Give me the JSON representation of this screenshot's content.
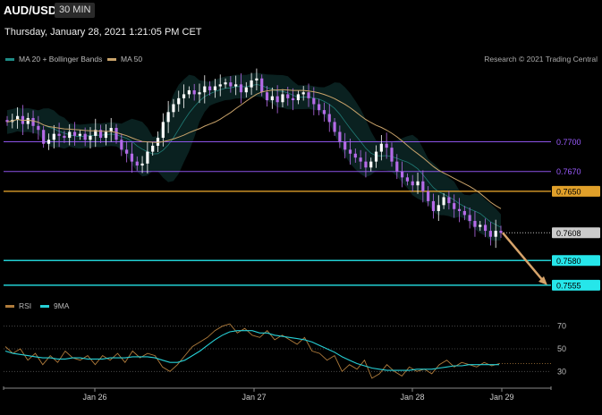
{
  "header": {
    "symbol": "AUD/USD",
    "interval": "30 MIN"
  },
  "timestamp": "Thursday, January 28, 2021 1:21:05 PM CET",
  "credit": "Research © 2021 Trading Central",
  "colors": {
    "background": "#000000",
    "candle_up": "#ffffff",
    "candle_down": "#b56be8",
    "ma20_bands": "#1e5e5c",
    "ma50": "#c9a36a",
    "level_violet": "#9b5cff",
    "level_orange": "#e0a02a",
    "level_cyan": "#26e6ea",
    "arrow": "#d6a36a",
    "rsi": "#b07c3c",
    "rsi_ma": "#26d0d6"
  },
  "chart_data": [
    {
      "type": "candlestick",
      "legend": [
        "MA 20 + Bollinger Bands",
        "MA 50"
      ],
      "x_ticks": [
        "Jan 26",
        "Jan 27",
        "Jan 28",
        "Jan 29"
      ],
      "ylim": [
        0.7545,
        0.778
      ],
      "levels": [
        {
          "value": 0.77,
          "label": "0.7700",
          "color": "#9b5cff"
        },
        {
          "value": 0.767,
          "label": "0.7670",
          "color": "#9b5cff"
        },
        {
          "value": 0.765,
          "label": "0.7650",
          "color": "#e0a02a"
        },
        {
          "value": 0.7608,
          "label": "0.7608",
          "color": "#cccccc"
        },
        {
          "value": 0.758,
          "label": "0.7580",
          "color": "#26e6ea"
        },
        {
          "value": 0.7555,
          "label": "0.7555",
          "color": "#26e6ea"
        }
      ],
      "last_price": 0.7608,
      "projection": {
        "from": 0.7608,
        "to": 0.7555
      },
      "price_path": [
        0.772,
        0.7722,
        0.7726,
        0.7718,
        0.7724,
        0.7716,
        0.7712,
        0.7698,
        0.7702,
        0.7708,
        0.7706,
        0.7704,
        0.771,
        0.7706,
        0.7708,
        0.7702,
        0.7706,
        0.7712,
        0.7704,
        0.771,
        0.7714,
        0.7702,
        0.7692,
        0.7688,
        0.768,
        0.7676,
        0.7678,
        0.769,
        0.7696,
        0.7704,
        0.772,
        0.773,
        0.7738,
        0.7744,
        0.7748,
        0.7752,
        0.7748,
        0.775,
        0.7756,
        0.7752,
        0.7756,
        0.7758,
        0.776,
        0.7756,
        0.7758,
        0.775,
        0.7755,
        0.7762,
        0.7764,
        0.775,
        0.7742,
        0.7746,
        0.774,
        0.7748,
        0.7744,
        0.7742,
        0.7748,
        0.775,
        0.7744,
        0.7738,
        0.7732,
        0.7728,
        0.772,
        0.771,
        0.77,
        0.7692,
        0.7688,
        0.7684,
        0.768,
        0.7674,
        0.768,
        0.769,
        0.7698,
        0.7694,
        0.768,
        0.767,
        0.7664,
        0.766,
        0.7656,
        0.766,
        0.765,
        0.764,
        0.763,
        0.7636,
        0.7644,
        0.7638,
        0.7632,
        0.763,
        0.7626,
        0.762,
        0.7614,
        0.7616,
        0.761,
        0.7604,
        0.761,
        0.7608
      ]
    },
    {
      "type": "line",
      "legend": [
        "RSI",
        "9MA"
      ],
      "ylim": [
        20,
        80
      ],
      "y_ticks": [
        70,
        50,
        30
      ],
      "series": [
        {
          "name": "RSI",
          "values": [
            52,
            46,
            50,
            40,
            46,
            36,
            44,
            38,
            48,
            42,
            40,
            44,
            36,
            44,
            40,
            46,
            38,
            48,
            42,
            46,
            44,
            34,
            30,
            36,
            44,
            52,
            56,
            60,
            66,
            70,
            72,
            64,
            68,
            62,
            60,
            66,
            58,
            62,
            58,
            54,
            60,
            48,
            46,
            40,
            44,
            30,
            36,
            32,
            40,
            24,
            28,
            36,
            30,
            26,
            34,
            30,
            32,
            28,
            36,
            40,
            34,
            38,
            36,
            34,
            38,
            35,
            37
          ]
        },
        {
          "name": "9MA",
          "values": [
            48,
            46,
            45,
            44,
            43,
            42,
            42,
            41,
            41,
            42,
            42,
            41,
            41,
            41,
            42,
            42,
            42,
            43,
            43,
            43,
            42,
            40,
            38,
            38,
            40,
            44,
            48,
            53,
            58,
            62,
            65,
            66,
            66,
            66,
            64,
            64,
            62,
            61,
            60,
            59,
            58,
            56,
            53,
            50,
            47,
            43,
            40,
            37,
            35,
            33,
            32,
            31,
            31,
            31,
            31,
            32,
            32,
            32,
            33,
            34,
            35,
            35,
            36,
            36,
            36,
            36,
            36
          ]
        }
      ]
    }
  ]
}
